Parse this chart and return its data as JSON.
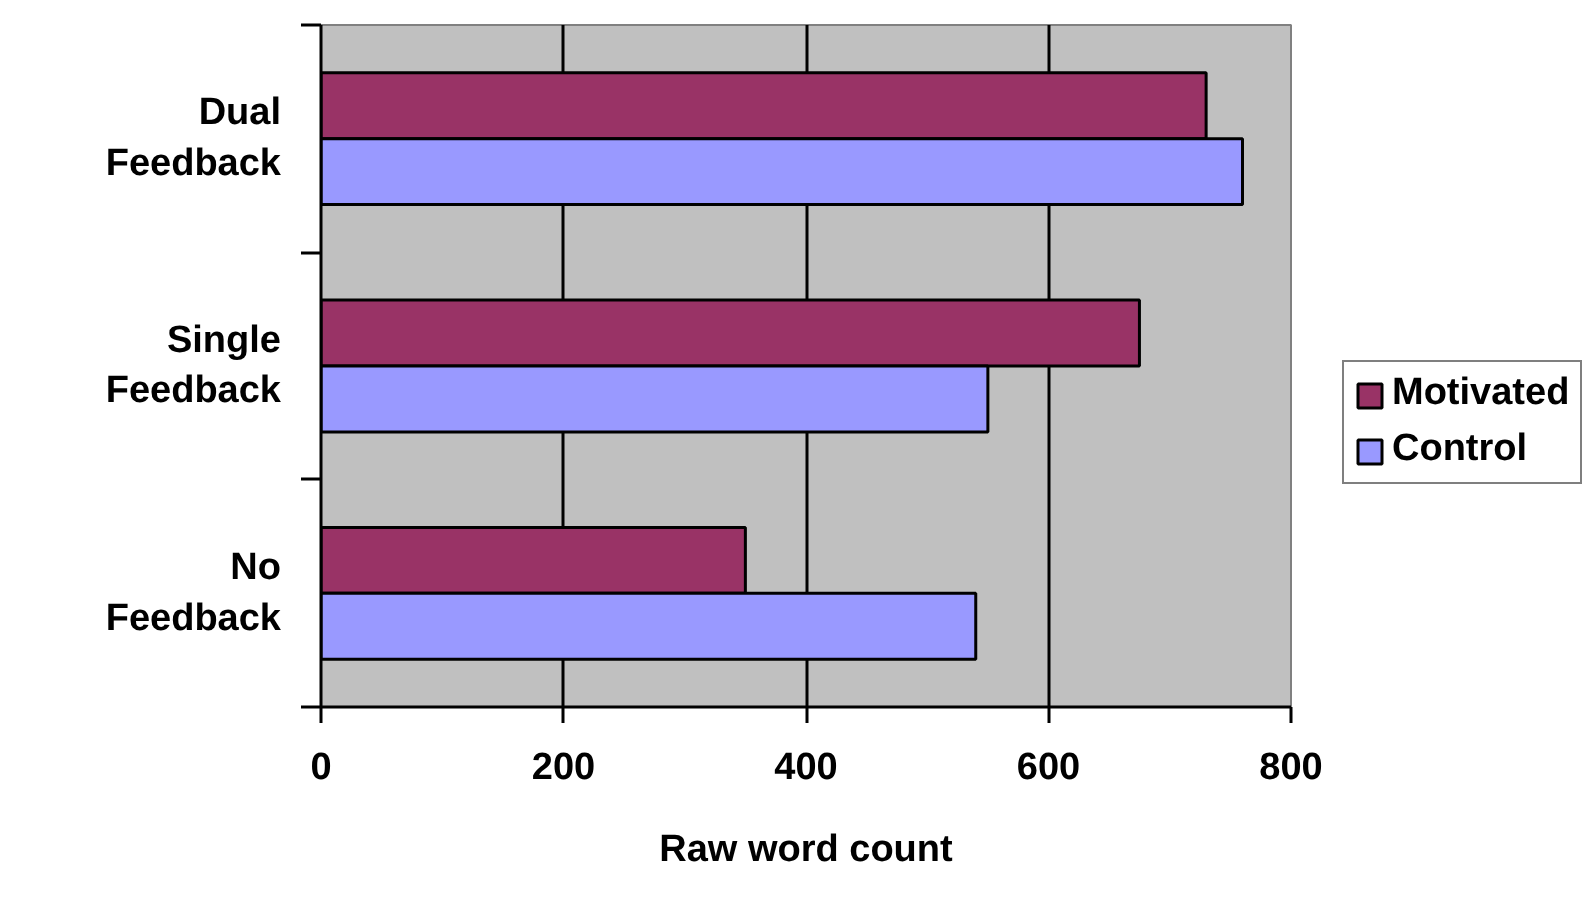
{
  "chart_data": {
    "type": "bar",
    "orientation": "horizontal",
    "xlabel": "Raw word count",
    "categories": [
      "Dual Feedback",
      "Single Feedback",
      "No Feedback"
    ],
    "series": [
      {
        "name": "Motivated",
        "color": "#993366",
        "values": [
          730,
          675,
          350
        ]
      },
      {
        "name": "Control",
        "color": "#9999ff",
        "values": [
          760,
          550,
          540
        ]
      }
    ],
    "xlim": [
      0,
      800
    ],
    "xticks": [
      0,
      200,
      400,
      600,
      800
    ],
    "grid": "x",
    "legend": "right"
  }
}
